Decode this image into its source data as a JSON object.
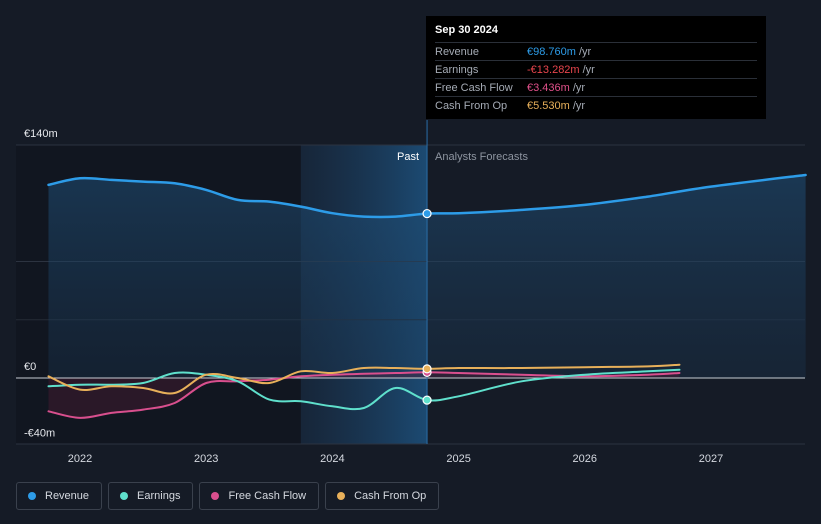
{
  "tooltip": {
    "date": "Sep 30 2024",
    "rows": [
      {
        "label": "Revenue",
        "value": "€98.760m",
        "unit": "/yr",
        "color": "#2d9ce8"
      },
      {
        "label": "Earnings",
        "value": "-€13.282m",
        "unit": "/yr",
        "color": "#e8454d"
      },
      {
        "label": "Free Cash Flow",
        "value": "€3.436m",
        "unit": "/yr",
        "color": "#e0508a"
      },
      {
        "label": "Cash From Op",
        "value": "€5.530m",
        "unit": "/yr",
        "color": "#e8b05a"
      }
    ]
  },
  "labels": {
    "past": "Past",
    "forecast": "Analysts Forecasts"
  },
  "legend": [
    {
      "label": "Revenue",
      "color": "#2d9ce8"
    },
    {
      "label": "Earnings",
      "color": "#5fe0cc"
    },
    {
      "label": "Free Cash Flow",
      "color": "#d94f8e"
    },
    {
      "label": "Cash From Op",
      "color": "#e8b05a"
    }
  ],
  "chart_data": {
    "type": "line",
    "x_ticks": [
      "2022",
      "2023",
      "2024",
      "2025",
      "2026",
      "2027"
    ],
    "y_ticks": [
      {
        "value": 140,
        "label": "€140m"
      },
      {
        "value": 0,
        "label": "€0"
      },
      {
        "value": -40,
        "label": "-€40m"
      }
    ],
    "ylim": [
      -40,
      140
    ],
    "xlim": [
      2021.75,
      2027.75
    ],
    "past_start": 2023.75,
    "divider": 2024.75,
    "series": [
      {
        "name": "Revenue",
        "color": "#2d9ce8",
        "x": [
          2021.75,
          2022.0,
          2022.25,
          2022.5,
          2022.75,
          2023.0,
          2023.25,
          2023.5,
          2023.75,
          2024.0,
          2024.25,
          2024.5,
          2024.75,
          2025.0,
          2025.5,
          2026.0,
          2026.5,
          2027.0,
          2027.75
        ],
        "y": [
          116,
          120,
          119,
          118,
          117,
          113,
          107,
          106,
          103,
          99,
          97,
          97,
          98.8,
          99,
          101,
          104,
          109,
          115,
          122
        ]
      },
      {
        "name": "Earnings",
        "color": "#5fe0cc",
        "x": [
          2021.75,
          2022.0,
          2022.25,
          2022.5,
          2022.75,
          2023.0,
          2023.25,
          2023.5,
          2023.75,
          2024.0,
          2024.25,
          2024.5,
          2024.75,
          2025.0,
          2025.5,
          2026.0,
          2026.5,
          2026.75
        ],
        "y": [
          -5,
          -4,
          -4,
          -3,
          3,
          2,
          -2,
          -13,
          -14,
          -17,
          -18,
          -6,
          -13.3,
          -11,
          -2,
          2,
          4,
          5
        ]
      },
      {
        "name": "Free Cash Flow",
        "color": "#d94f8e",
        "x": [
          2021.75,
          2022.0,
          2022.25,
          2022.5,
          2022.75,
          2023.0,
          2023.25,
          2023.5,
          2023.75,
          2024.0,
          2024.25,
          2024.5,
          2024.75,
          2025.0,
          2025.5,
          2026.0,
          2026.5,
          2026.75
        ],
        "y": [
          -20,
          -24,
          -21,
          -19,
          -15,
          -3,
          -2,
          -1,
          1,
          2,
          2.5,
          3,
          3.4,
          3,
          2,
          1,
          2,
          3
        ]
      },
      {
        "name": "Cash From Op",
        "color": "#e8b05a",
        "x": [
          2021.75,
          2022.0,
          2022.25,
          2022.5,
          2022.75,
          2023.0,
          2023.25,
          2023.5,
          2023.75,
          2024.0,
          2024.25,
          2024.5,
          2024.75,
          2025.0,
          2025.5,
          2026.0,
          2026.5,
          2026.75
        ],
        "y": [
          1,
          -7,
          -5,
          -6,
          -9,
          2,
          0,
          -3,
          4,
          3,
          6,
          6,
          5.5,
          6,
          6,
          6.5,
          7,
          8
        ]
      }
    ]
  }
}
